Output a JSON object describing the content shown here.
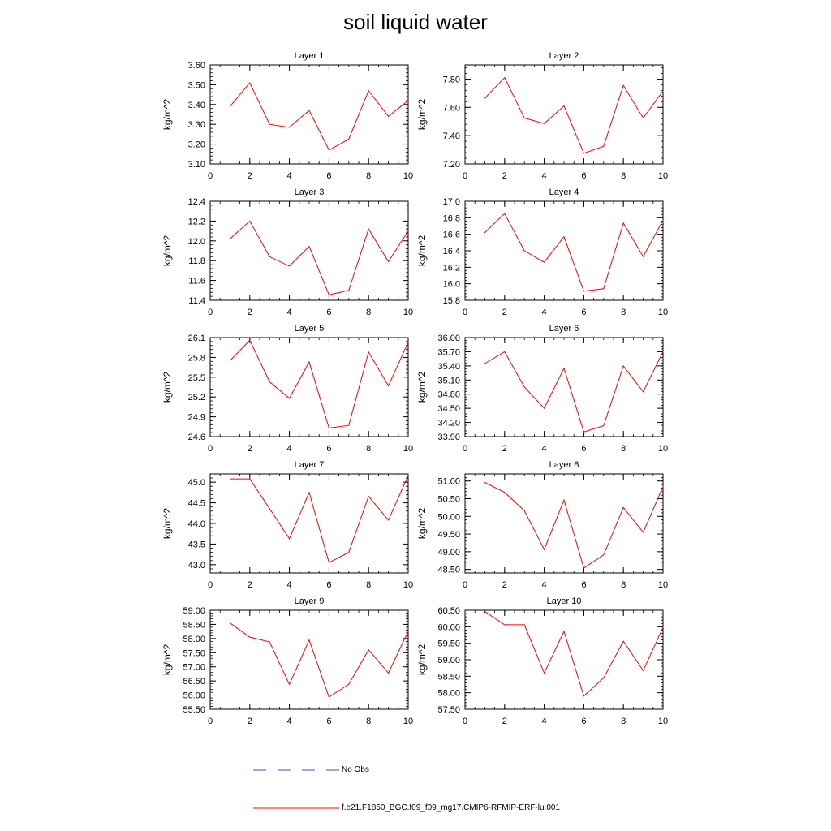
{
  "title": "soil liquid water",
  "legend": {
    "obs_label": "No Obs",
    "model_label": "f.e21.F1850_BGC.f09_f09_mg17.CMIP6-RFMIP-ERF-lu.001",
    "model_color": "#ff0000",
    "obs_color": "#4d4dcc"
  },
  "chart_data": [
    {
      "type": "line",
      "title": "Layer 1",
      "xlabel": "",
      "ylabel": "kg/m^2",
      "xlim": [
        0,
        10
      ],
      "ylim": [
        3.1,
        3.6
      ],
      "xticks": [
        0,
        2,
        4,
        6,
        8,
        10
      ],
      "yticks": [
        "3.10",
        "3.20",
        "3.30",
        "3.40",
        "3.50",
        "3.60"
      ],
      "x": [
        1,
        2,
        3,
        4,
        5,
        6,
        7,
        8,
        9,
        10
      ],
      "y": [
        3.39,
        3.51,
        3.3,
        3.285,
        3.37,
        3.17,
        3.225,
        3.47,
        3.34,
        3.42
      ]
    },
    {
      "type": "line",
      "title": "Layer 2",
      "xlabel": "",
      "ylabel": "kg/m^2",
      "xlim": [
        0,
        10
      ],
      "ylim": [
        7.2,
        7.9
      ],
      "xticks": [
        0,
        2,
        4,
        6,
        8,
        10
      ],
      "yticks": [
        "7.20",
        "7.40",
        "7.60",
        "7.80"
      ],
      "x": [
        1,
        2,
        3,
        4,
        5,
        6,
        7,
        8,
        9,
        10
      ],
      "y": [
        7.665,
        7.81,
        7.525,
        7.485,
        7.61,
        7.275,
        7.325,
        7.755,
        7.525,
        7.715
      ]
    },
    {
      "type": "line",
      "title": "Layer 3",
      "xlabel": "",
      "ylabel": "kg/m^2",
      "xlim": [
        0,
        10
      ],
      "ylim": [
        11.4,
        12.4
      ],
      "xticks": [
        0,
        2,
        4,
        6,
        8,
        10
      ],
      "yticks": [
        "11.4",
        "11.6",
        "11.8",
        "12.0",
        "12.2",
        "12.4"
      ],
      "x": [
        1,
        2,
        3,
        4,
        5,
        6,
        7,
        8,
        9,
        10
      ],
      "y": [
        12.02,
        12.2,
        11.84,
        11.745,
        11.945,
        11.455,
        11.5,
        12.12,
        11.79,
        12.1
      ]
    },
    {
      "type": "line",
      "title": "Layer 4",
      "xlabel": "",
      "ylabel": "kg/m^2",
      "xlim": [
        0,
        10
      ],
      "ylim": [
        15.8,
        17.0
      ],
      "xticks": [
        0,
        2,
        4,
        6,
        8,
        10
      ],
      "yticks": [
        "15.8",
        "16.0",
        "16.2",
        "16.4",
        "16.6",
        "16.8",
        "17.0"
      ],
      "x": [
        1,
        2,
        3,
        4,
        5,
        6,
        7,
        8,
        9,
        10
      ],
      "y": [
        16.62,
        16.85,
        16.4,
        16.26,
        16.57,
        15.91,
        15.94,
        16.735,
        16.33,
        16.77
      ]
    },
    {
      "type": "line",
      "title": "Layer 5",
      "xlabel": "",
      "ylabel": "kg/m^2",
      "xlim": [
        0,
        10
      ],
      "ylim": [
        24.6,
        26.1
      ],
      "xticks": [
        0,
        2,
        4,
        6,
        8,
        10
      ],
      "yticks": [
        "24.6",
        "24.9",
        "25.2",
        "25.5",
        "25.8",
        "26.1"
      ],
      "x": [
        1,
        2,
        3,
        4,
        5,
        6,
        7,
        8,
        9,
        10
      ],
      "y": [
        25.75,
        26.06,
        25.43,
        25.18,
        25.73,
        24.73,
        24.77,
        25.88,
        25.37,
        26.03
      ]
    },
    {
      "type": "line",
      "title": "Layer 6",
      "xlabel": "",
      "ylabel": "kg/m^2",
      "xlim": [
        0,
        10
      ],
      "ylim": [
        33.9,
        36.0
      ],
      "xticks": [
        0,
        2,
        4,
        6,
        8,
        10
      ],
      "yticks": [
        "33.90",
        "34.20",
        "34.50",
        "34.80",
        "35.10",
        "35.40",
        "35.70",
        "36.00"
      ],
      "x": [
        1,
        2,
        3,
        4,
        5,
        6,
        7,
        8,
        9,
        10
      ],
      "y": [
        35.45,
        35.7,
        34.95,
        34.5,
        35.35,
        34.0,
        34.13,
        35.4,
        34.85,
        35.7
      ]
    },
    {
      "type": "line",
      "title": "Layer 7",
      "xlabel": "",
      "ylabel": "kg/m^2",
      "xlim": [
        0,
        10
      ],
      "ylim": [
        42.8,
        45.2
      ],
      "xticks": [
        0,
        2,
        4,
        6,
        8,
        10
      ],
      "yticks": [
        "43.0",
        "43.5",
        "44.0",
        "44.5",
        "45.0"
      ],
      "x": [
        1,
        2,
        3,
        4,
        5,
        6,
        7,
        8,
        9,
        10
      ],
      "y": [
        45.08,
        45.08,
        44.36,
        43.63,
        44.75,
        43.05,
        43.3,
        44.66,
        44.08,
        45.16
      ]
    },
    {
      "type": "line",
      "title": "Layer 8",
      "xlabel": "",
      "ylabel": "kg/m^2",
      "xlim": [
        0,
        10
      ],
      "ylim": [
        48.4,
        51.2
      ],
      "xticks": [
        0,
        2,
        4,
        6,
        8,
        10
      ],
      "yticks": [
        "48.50",
        "49.00",
        "49.50",
        "50.00",
        "50.50",
        "51.00"
      ],
      "x": [
        1,
        2,
        3,
        4,
        5,
        6,
        7,
        8,
        9,
        10
      ],
      "y": [
        50.96,
        50.68,
        50.16,
        49.06,
        50.46,
        48.54,
        48.91,
        50.25,
        49.55,
        50.84
      ]
    },
    {
      "type": "line",
      "title": "Layer 9",
      "xlabel": "",
      "ylabel": "kg/m^2",
      "xlim": [
        0,
        10
      ],
      "ylim": [
        55.5,
        59.0
      ],
      "xticks": [
        0,
        2,
        4,
        6,
        8,
        10
      ],
      "yticks": [
        "55.50",
        "56.00",
        "56.50",
        "57.00",
        "57.50",
        "58.00",
        "58.50",
        "59.00"
      ],
      "x": [
        1,
        2,
        3,
        4,
        5,
        6,
        7,
        8,
        9,
        10
      ],
      "y": [
        58.55,
        58.05,
        57.88,
        56.38,
        57.95,
        55.93,
        56.38,
        57.6,
        56.78,
        58.25
      ]
    },
    {
      "type": "line",
      "title": "Layer 10",
      "xlabel": "",
      "ylabel": "kg/m^2",
      "xlim": [
        0,
        10
      ],
      "ylim": [
        57.5,
        60.5
      ],
      "xticks": [
        0,
        2,
        4,
        6,
        8,
        10
      ],
      "yticks": [
        "57.50",
        "58.00",
        "58.50",
        "59.00",
        "59.50",
        "60.00",
        "60.50"
      ],
      "x": [
        1,
        2,
        3,
        4,
        5,
        6,
        7,
        8,
        9,
        10
      ],
      "y": [
        60.46,
        60.06,
        60.06,
        58.6,
        59.86,
        57.9,
        58.45,
        59.56,
        58.67,
        59.98
      ]
    }
  ]
}
